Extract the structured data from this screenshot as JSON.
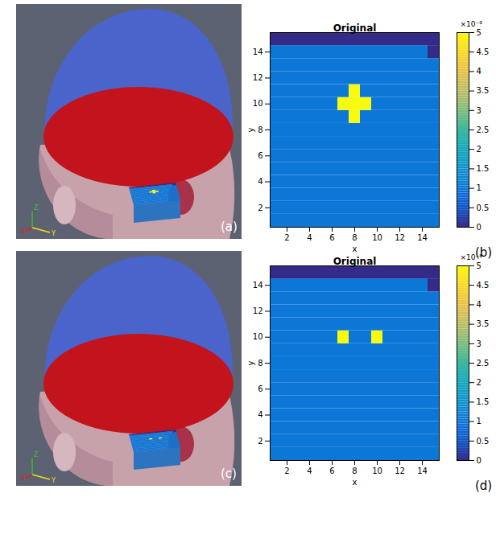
{
  "images": [
    {
      "panel": "(a)",
      "axis_labels": [
        "X",
        "Y",
        "Z"
      ]
    },
    {
      "panel": "(c)",
      "axis_labels": [
        "X",
        "Y",
        "Z"
      ]
    }
  ],
  "chart_data": [
    {
      "type": "heatmap",
      "panel": "(b)",
      "title": "Original",
      "x_label": "x",
      "y_label": "y",
      "x": [
        1,
        2,
        3,
        4,
        5,
        6,
        7,
        8,
        9,
        10,
        11,
        12,
        13,
        14,
        15
      ],
      "y": [
        1,
        2,
        3,
        4,
        5,
        6,
        7,
        8,
        9,
        10,
        11,
        12,
        13,
        14,
        15
      ],
      "cells": [
        [
          1e-08,
          1e-08,
          1e-08,
          1e-08,
          1e-08,
          1e-08,
          1e-08,
          1e-08,
          1e-08,
          1e-08,
          1e-08,
          1e-08,
          1e-08,
          1e-08,
          1e-08
        ],
        [
          1e-08,
          1e-08,
          1e-08,
          1e-08,
          1e-08,
          1e-08,
          1e-08,
          1e-08,
          1e-08,
          1e-08,
          1e-08,
          1e-08,
          1e-08,
          1e-08,
          1e-08
        ],
        [
          1e-08,
          1e-08,
          1e-08,
          1e-08,
          1e-08,
          1e-08,
          1e-08,
          1e-08,
          1e-08,
          1e-08,
          1e-08,
          1e-08,
          1e-08,
          1e-08,
          1e-08
        ],
        [
          1e-08,
          1e-08,
          1e-08,
          1e-08,
          1e-08,
          1e-08,
          1e-08,
          1e-08,
          1e-08,
          1e-08,
          1e-08,
          1e-08,
          1e-08,
          1e-08,
          1e-08
        ],
        [
          1e-08,
          1e-08,
          1e-08,
          1e-08,
          1e-08,
          1e-08,
          1e-08,
          1e-08,
          1e-08,
          1e-08,
          1e-08,
          1e-08,
          1e-08,
          1e-08,
          1e-08
        ],
        [
          1e-08,
          1e-08,
          1e-08,
          1e-08,
          1e-08,
          1e-08,
          1e-08,
          1e-08,
          1e-08,
          1e-08,
          1e-08,
          1e-08,
          1e-08,
          1e-08,
          1e-08
        ],
        [
          1e-08,
          1e-08,
          1e-08,
          1e-08,
          1e-08,
          1e-08,
          1e-08,
          1e-08,
          1e-08,
          1e-08,
          1e-08,
          1e-08,
          1e-08,
          1e-08,
          1e-08
        ],
        [
          1e-08,
          1e-08,
          1e-08,
          1e-08,
          1e-08,
          1e-08,
          1e-08,
          1e-08,
          1e-08,
          1e-08,
          1e-08,
          1e-08,
          1e-08,
          1e-08,
          1e-08
        ],
        [
          1e-08,
          1e-08,
          1e-08,
          1e-08,
          1e-08,
          1e-08,
          1e-08,
          5e-08,
          1e-08,
          1e-08,
          1e-08,
          1e-08,
          1e-08,
          1e-08,
          1e-08
        ],
        [
          1e-08,
          1e-08,
          1e-08,
          1e-08,
          1e-08,
          1e-08,
          5e-08,
          5e-08,
          5e-08,
          1e-08,
          1e-08,
          1e-08,
          1e-08,
          1e-08,
          1e-08
        ],
        [
          1e-08,
          1e-08,
          1e-08,
          1e-08,
          1e-08,
          1e-08,
          1e-08,
          5e-08,
          1e-08,
          1e-08,
          1e-08,
          1e-08,
          1e-08,
          1e-08,
          1e-08
        ],
        [
          1e-08,
          1e-08,
          1e-08,
          1e-08,
          1e-08,
          1e-08,
          1e-08,
          1e-08,
          1e-08,
          1e-08,
          1e-08,
          1e-08,
          1e-08,
          1e-08,
          1e-08
        ],
        [
          1e-08,
          1e-08,
          1e-08,
          1e-08,
          1e-08,
          1e-08,
          1e-08,
          1e-08,
          1e-08,
          1e-08,
          1e-08,
          1e-08,
          1e-08,
          1e-08,
          1e-08
        ],
        [
          1e-08,
          1e-08,
          1e-08,
          1e-08,
          1e-08,
          1e-08,
          1e-08,
          1e-08,
          1e-08,
          1e-08,
          1e-08,
          1e-08,
          1e-08,
          1e-08,
          0
        ],
        [
          0,
          0,
          0,
          0,
          0,
          0,
          0,
          0,
          0,
          0,
          0,
          0,
          0,
          0,
          0
        ]
      ],
      "xlim": [
        0.5,
        15.5
      ],
      "ylim": [
        0.5,
        15.5
      ],
      "xticks": [
        2,
        4,
        6,
        8,
        10,
        12,
        14
      ],
      "yticks": [
        2,
        4,
        6,
        8,
        10,
        12,
        14
      ],
      "colorbar": {
        "range": [
          0,
          5e-08
        ],
        "ticks": [
          0,
          {
            "value": 5e-09,
            "label": "0.5"
          },
          {
            "value": 1e-08,
            "label": "1"
          },
          {
            "value": 1.5e-08,
            "label": "1.5"
          },
          {
            "value": 2e-08,
            "label": "2"
          },
          {
            "value": 2.5e-08,
            "label": "2.5"
          },
          {
            "value": 3e-08,
            "label": "3"
          },
          {
            "value": 3.5e-08,
            "label": "3.5"
          },
          {
            "value": 4e-08,
            "label": "4"
          },
          {
            "value": 4.5e-08,
            "label": "4.5"
          },
          {
            "value": 5e-08,
            "label": "5"
          }
        ],
        "label": "×10⁻⁸"
      }
    },
    {
      "type": "heatmap",
      "panel": "(d)",
      "title": "Original",
      "x_label": "x",
      "y_label": "y",
      "x": [
        1,
        2,
        3,
        4,
        5,
        6,
        7,
        8,
        9,
        10,
        11,
        12,
        13,
        14,
        15
      ],
      "y": [
        1,
        2,
        3,
        4,
        5,
        6,
        7,
        8,
        9,
        10,
        11,
        12,
        13,
        14,
        15
      ],
      "cells": [
        [
          1e-08,
          1e-08,
          1e-08,
          1e-08,
          1e-08,
          1e-08,
          1e-08,
          1e-08,
          1e-08,
          1e-08,
          1e-08,
          1e-08,
          1e-08,
          1e-08,
          1e-08
        ],
        [
          1e-08,
          1e-08,
          1e-08,
          1e-08,
          1e-08,
          1e-08,
          1e-08,
          1e-08,
          1e-08,
          1e-08,
          1e-08,
          1e-08,
          1e-08,
          1e-08,
          1e-08
        ],
        [
          1e-08,
          1e-08,
          1e-08,
          1e-08,
          1e-08,
          1e-08,
          1e-08,
          1e-08,
          1e-08,
          1e-08,
          1e-08,
          1e-08,
          1e-08,
          1e-08,
          1e-08
        ],
        [
          1e-08,
          1e-08,
          1e-08,
          1e-08,
          1e-08,
          1e-08,
          1e-08,
          1e-08,
          1e-08,
          1e-08,
          1e-08,
          1e-08,
          1e-08,
          1e-08,
          1e-08
        ],
        [
          1e-08,
          1e-08,
          1e-08,
          1e-08,
          1e-08,
          1e-08,
          1e-08,
          1e-08,
          1e-08,
          1e-08,
          1e-08,
          1e-08,
          1e-08,
          1e-08,
          1e-08
        ],
        [
          1e-08,
          1e-08,
          1e-08,
          1e-08,
          1e-08,
          1e-08,
          1e-08,
          1e-08,
          1e-08,
          1e-08,
          1e-08,
          1e-08,
          1e-08,
          1e-08,
          1e-08
        ],
        [
          1e-08,
          1e-08,
          1e-08,
          1e-08,
          1e-08,
          1e-08,
          1e-08,
          1e-08,
          1e-08,
          1e-08,
          1e-08,
          1e-08,
          1e-08,
          1e-08,
          1e-08
        ],
        [
          1e-08,
          1e-08,
          1e-08,
          1e-08,
          1e-08,
          1e-08,
          1e-08,
          1e-08,
          1e-08,
          1e-08,
          1e-08,
          1e-08,
          1e-08,
          1e-08,
          1e-08
        ],
        [
          1e-08,
          1e-08,
          1e-08,
          1e-08,
          1e-08,
          1e-08,
          1e-08,
          1e-08,
          1e-08,
          1e-08,
          1e-08,
          1e-08,
          1e-08,
          1e-08,
          1e-08
        ],
        [
          1e-08,
          1e-08,
          1e-08,
          1e-08,
          1e-08,
          1e-08,
          5e-08,
          1e-08,
          1e-08,
          5e-08,
          1e-08,
          1e-08,
          1e-08,
          1e-08,
          1e-08
        ],
        [
          1e-08,
          1e-08,
          1e-08,
          1e-08,
          1e-08,
          1e-08,
          1e-08,
          1e-08,
          1e-08,
          1e-08,
          1e-08,
          1e-08,
          1e-08,
          1e-08,
          1e-08
        ],
        [
          1e-08,
          1e-08,
          1e-08,
          1e-08,
          1e-08,
          1e-08,
          1e-08,
          1e-08,
          1e-08,
          1e-08,
          1e-08,
          1e-08,
          1e-08,
          1e-08,
          1e-08
        ],
        [
          1e-08,
          1e-08,
          1e-08,
          1e-08,
          1e-08,
          1e-08,
          1e-08,
          1e-08,
          1e-08,
          1e-08,
          1e-08,
          1e-08,
          1e-08,
          1e-08,
          1e-08
        ],
        [
          1e-08,
          1e-08,
          1e-08,
          1e-08,
          1e-08,
          1e-08,
          1e-08,
          1e-08,
          1e-08,
          1e-08,
          1e-08,
          1e-08,
          1e-08,
          1e-08,
          0
        ],
        [
          0,
          0,
          0,
          0,
          0,
          0,
          0,
          0,
          0,
          0,
          0,
          0,
          0,
          0,
          0
        ]
      ],
      "xlim": [
        0.5,
        15.5
      ],
      "ylim": [
        0.5,
        15.5
      ],
      "xticks": [
        2,
        4,
        6,
        8,
        10,
        12,
        14
      ],
      "yticks": [
        2,
        4,
        6,
        8,
        10,
        12,
        14
      ],
      "colorbar": {
        "range": [
          0,
          5e-08
        ],
        "ticks": [
          0,
          {
            "value": 5e-09,
            "label": "0.5"
          },
          {
            "value": 1e-08,
            "label": "1"
          },
          {
            "value": 1.5e-08,
            "label": "1.5"
          },
          {
            "value": 2e-08,
            "label": "2"
          },
          {
            "value": 2.5e-08,
            "label": "2.5"
          },
          {
            "value": 3e-08,
            "label": "3"
          },
          {
            "value": 3.5e-08,
            "label": "3.5"
          },
          {
            "value": 4e-08,
            "label": "4"
          },
          {
            "value": 4.5e-08,
            "label": "4.5"
          },
          {
            "value": 5e-08,
            "label": "5"
          }
        ],
        "label": "×10⁻⁸"
      }
    }
  ]
}
